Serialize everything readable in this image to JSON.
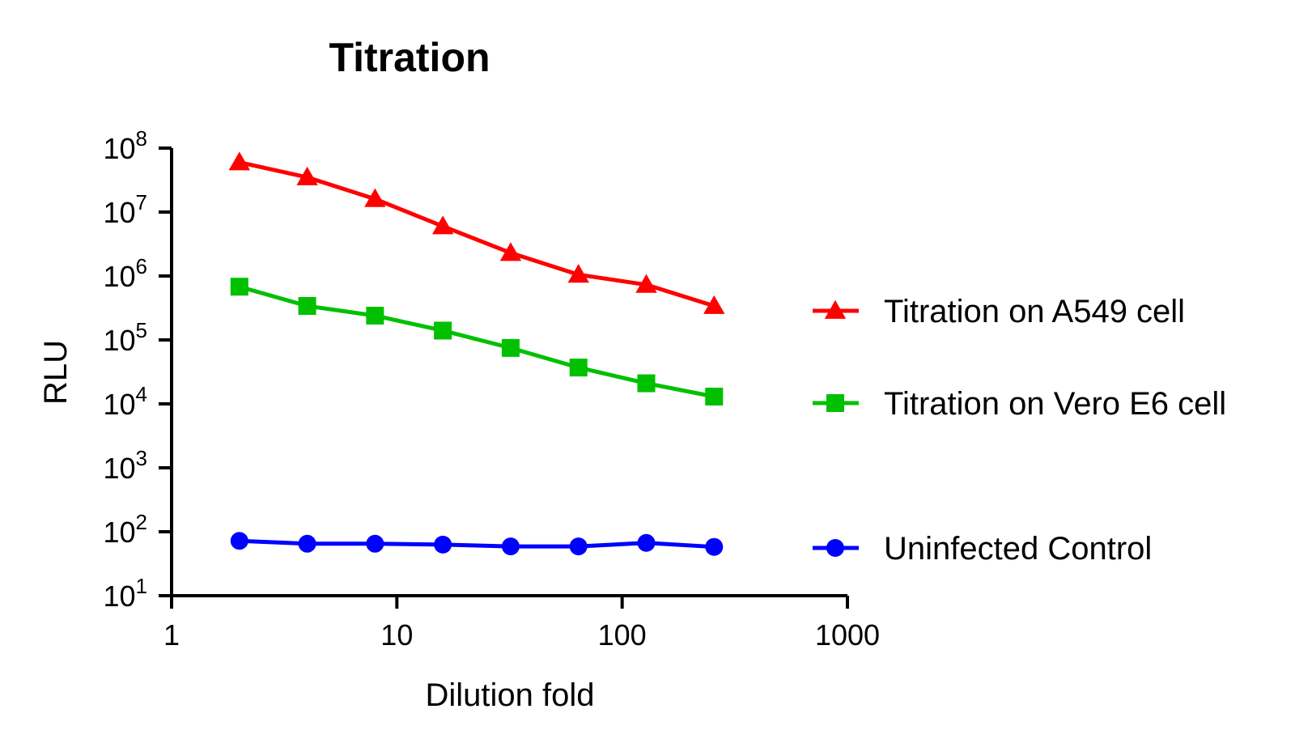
{
  "chart_data": {
    "type": "line",
    "title": "Titration",
    "xlabel": "Dilution fold",
    "ylabel": "RLU",
    "xscale": "log",
    "yscale": "log",
    "xlim": [
      1,
      1000
    ],
    "ylim": [
      10,
      100000000
    ],
    "xticks": [
      "1",
      "10",
      "100",
      "1000"
    ],
    "yticks": [
      {
        "base": "10",
        "exp": "8"
      },
      {
        "base": "10",
        "exp": "7"
      },
      {
        "base": "10",
        "exp": "6"
      },
      {
        "base": "10",
        "exp": "5"
      },
      {
        "base": "10",
        "exp": "4"
      },
      {
        "base": "10",
        "exp": "3"
      },
      {
        "base": "10",
        "exp": "2"
      },
      {
        "base": "10",
        "exp": "1"
      }
    ],
    "x": [
      2,
      4,
      8,
      16,
      32,
      64,
      128,
      256
    ],
    "grid": false,
    "legend_position": "right",
    "series": [
      {
        "name": "Titration on A549 cell",
        "color": "#ff0000",
        "marker": "triangle",
        "values": [
          60000000,
          35000000,
          16000000,
          6000000,
          2300000,
          1050000,
          730000,
          340000
        ]
      },
      {
        "name": "Titration on Vero E6 cell",
        "color": "#00c000",
        "marker": "square",
        "values": [
          680000,
          340000,
          240000,
          140000,
          75000,
          37000,
          21000,
          13000
        ]
      },
      {
        "name": "Uninfected Control",
        "color": "#0000ff",
        "marker": "circle",
        "values": [
          72,
          65,
          65,
          63,
          59,
          59,
          67,
          58
        ]
      }
    ]
  }
}
